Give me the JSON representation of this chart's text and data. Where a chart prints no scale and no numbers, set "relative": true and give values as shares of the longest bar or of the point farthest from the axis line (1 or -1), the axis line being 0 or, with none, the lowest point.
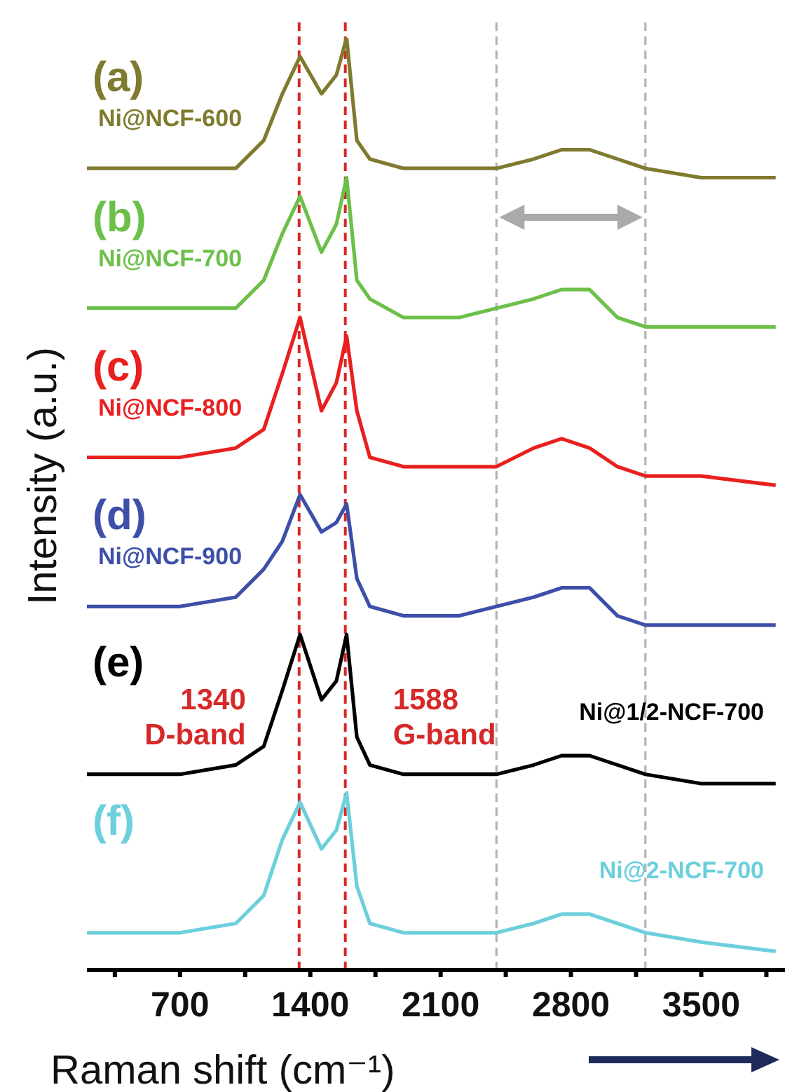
{
  "chart_data": {
    "type": "line",
    "relative": true,
    "xlabel": "Raman shift (cm⁻¹)",
    "ylabel": "Intensity (a.u.)",
    "x": [
      200,
      700,
      1000,
      1150,
      1250,
      1345,
      1460,
      1540,
      1595,
      1650,
      1720,
      1900,
      2200,
      2400,
      2600,
      2750,
      2900,
      3050,
      3200,
      3500,
      3900
    ],
    "xlim": [
      200,
      3950
    ],
    "xticks": [
      {
        "value": 350,
        "label": null
      },
      700,
      {
        "value": 1050,
        "label": null
      },
      1400,
      {
        "value": 1750,
        "label": null
      },
      2100,
      {
        "value": 2450,
        "label": null
      },
      2800,
      {
        "value": 3150,
        "label": null
      },
      3500,
      {
        "value": 3850,
        "label": null
      }
    ],
    "series": [
      {
        "name": "Ni@NCF-600",
        "color": "#7f7a2e",
        "values": [
          0.86,
          0.86,
          0.86,
          0.89,
          0.94,
          0.98,
          0.94,
          0.96,
          1.0,
          0.89,
          0.87,
          0.86,
          0.86,
          0.86,
          0.87,
          0.88,
          0.88,
          0.87,
          0.86,
          0.85,
          0.85
        ]
      },
      {
        "name": "Ni@NCF-700",
        "color": "#6cc04a",
        "values": [
          0.71,
          0.71,
          0.71,
          0.74,
          0.79,
          0.83,
          0.77,
          0.8,
          0.85,
          0.74,
          0.72,
          0.7,
          0.7,
          0.71,
          0.72,
          0.73,
          0.73,
          0.7,
          0.69,
          0.69,
          0.69
        ]
      },
      {
        "name": "Ni@NCF-800",
        "color": "#e8201f",
        "values": [
          0.55,
          0.55,
          0.56,
          0.58,
          0.64,
          0.7,
          0.6,
          0.63,
          0.68,
          0.6,
          0.55,
          0.54,
          0.54,
          0.54,
          0.56,
          0.57,
          0.56,
          0.54,
          0.53,
          0.53,
          0.52
        ]
      },
      {
        "name": "Ni@NCF-900",
        "color": "#3d4fa8",
        "values": [
          0.39,
          0.39,
          0.4,
          0.43,
          0.46,
          0.51,
          0.47,
          0.48,
          0.5,
          0.42,
          0.39,
          0.38,
          0.38,
          0.39,
          0.4,
          0.41,
          0.41,
          0.38,
          0.37,
          0.37,
          0.37
        ]
      },
      {
        "name": "Ni@1/2-NCF-700",
        "color": "#000000",
        "values": [
          0.21,
          0.21,
          0.22,
          0.24,
          0.3,
          0.36,
          0.29,
          0.31,
          0.36,
          0.25,
          0.22,
          0.21,
          0.21,
          0.21,
          0.22,
          0.23,
          0.23,
          0.22,
          0.21,
          0.2,
          0.2
        ]
      },
      {
        "name": "Ni@2-NCF-700",
        "color": "#6ccfdc",
        "values": [
          0.04,
          0.04,
          0.05,
          0.08,
          0.14,
          0.18,
          0.13,
          0.15,
          0.19,
          0.09,
          0.05,
          0.04,
          0.04,
          0.04,
          0.05,
          0.06,
          0.06,
          0.05,
          0.04,
          0.03,
          0.02
        ]
      }
    ],
    "annotations": [
      "(a)",
      "(b)",
      "(c)",
      "(d)",
      "(e)",
      "(f)"
    ],
    "ref_lines": [
      {
        "axis": "x",
        "value": 1340,
        "label": "1340 D-band",
        "color": "#d62828",
        "line_style": "dashed"
      },
      {
        "axis": "x",
        "value": 1588,
        "label": "1588 G-band",
        "color": "#d62828",
        "line_style": "dashed"
      },
      {
        "axis": "x",
        "value": 2400,
        "color": "#b4b4b4",
        "line_style": "dashed"
      },
      {
        "axis": "x",
        "value": 3200,
        "color": "#b4b4b4",
        "line_style": "dashed"
      }
    ],
    "legend": false,
    "grid": false,
    "marker": "none",
    "line_style": "solid"
  }
}
